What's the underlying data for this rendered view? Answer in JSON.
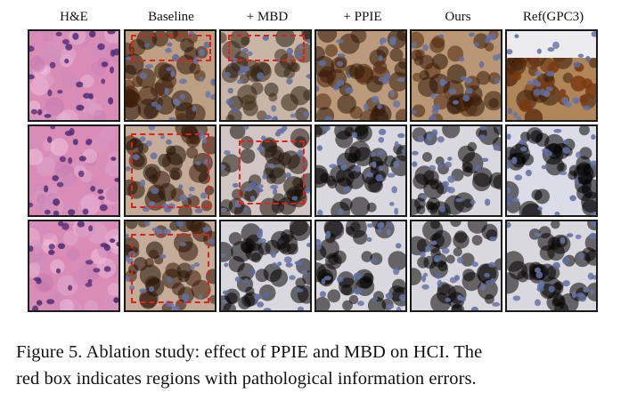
{
  "figure": {
    "columns": [
      "H&E",
      "Baseline",
      "+ MBD",
      "+ PPIE",
      "Ours",
      "Ref(GPC3)"
    ],
    "caption": {
      "line1": "Figure 5.  Ablation study: effect of PPIE and MBD on HCI. The",
      "line2": "red box indicates regions with pathological information errors."
    },
    "colors": {
      "he_background": "#d98cb6",
      "he_nucleus": "#4a2a6e",
      "ihc_background": "#dcdce6",
      "ihc_nucleus": "#6c78a8",
      "dab_stain": "#a8763f",
      "dab_strong": "#7a3a12",
      "annotation_box": "#e0201a"
    }
  }
}
